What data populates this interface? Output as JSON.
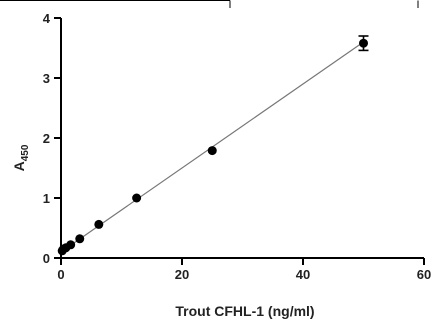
{
  "chart_data": {
    "type": "scatter",
    "title": "",
    "xlabel": "Trout CFHL-1 (ng/ml)",
    "ylabel_main": "A",
    "ylabel_sub": "450",
    "xlim": [
      0,
      60
    ],
    "ylim": [
      0,
      4
    ],
    "xticks": [
      0,
      20,
      40,
      60
    ],
    "yticks": [
      0,
      1,
      2,
      3,
      4
    ],
    "grid": false,
    "legend": "none",
    "series": [
      {
        "points": [
          {
            "x": 0.2,
            "y": 0.12
          },
          {
            "x": 0.4,
            "y": 0.15
          },
          {
            "x": 0.8,
            "y": 0.17
          },
          {
            "x": 1.6,
            "y": 0.22
          },
          {
            "x": 3.1,
            "y": 0.32
          },
          {
            "x": 6.25,
            "y": 0.56
          },
          {
            "x": 12.5,
            "y": 1.0
          },
          {
            "x": 25,
            "y": 1.79
          },
          {
            "x": 50,
            "y": 3.58,
            "err": 0.12
          }
        ],
        "fit": {
          "x0": 0,
          "y0": 0.1,
          "x1": 50,
          "y1": 3.6
        }
      }
    ]
  }
}
